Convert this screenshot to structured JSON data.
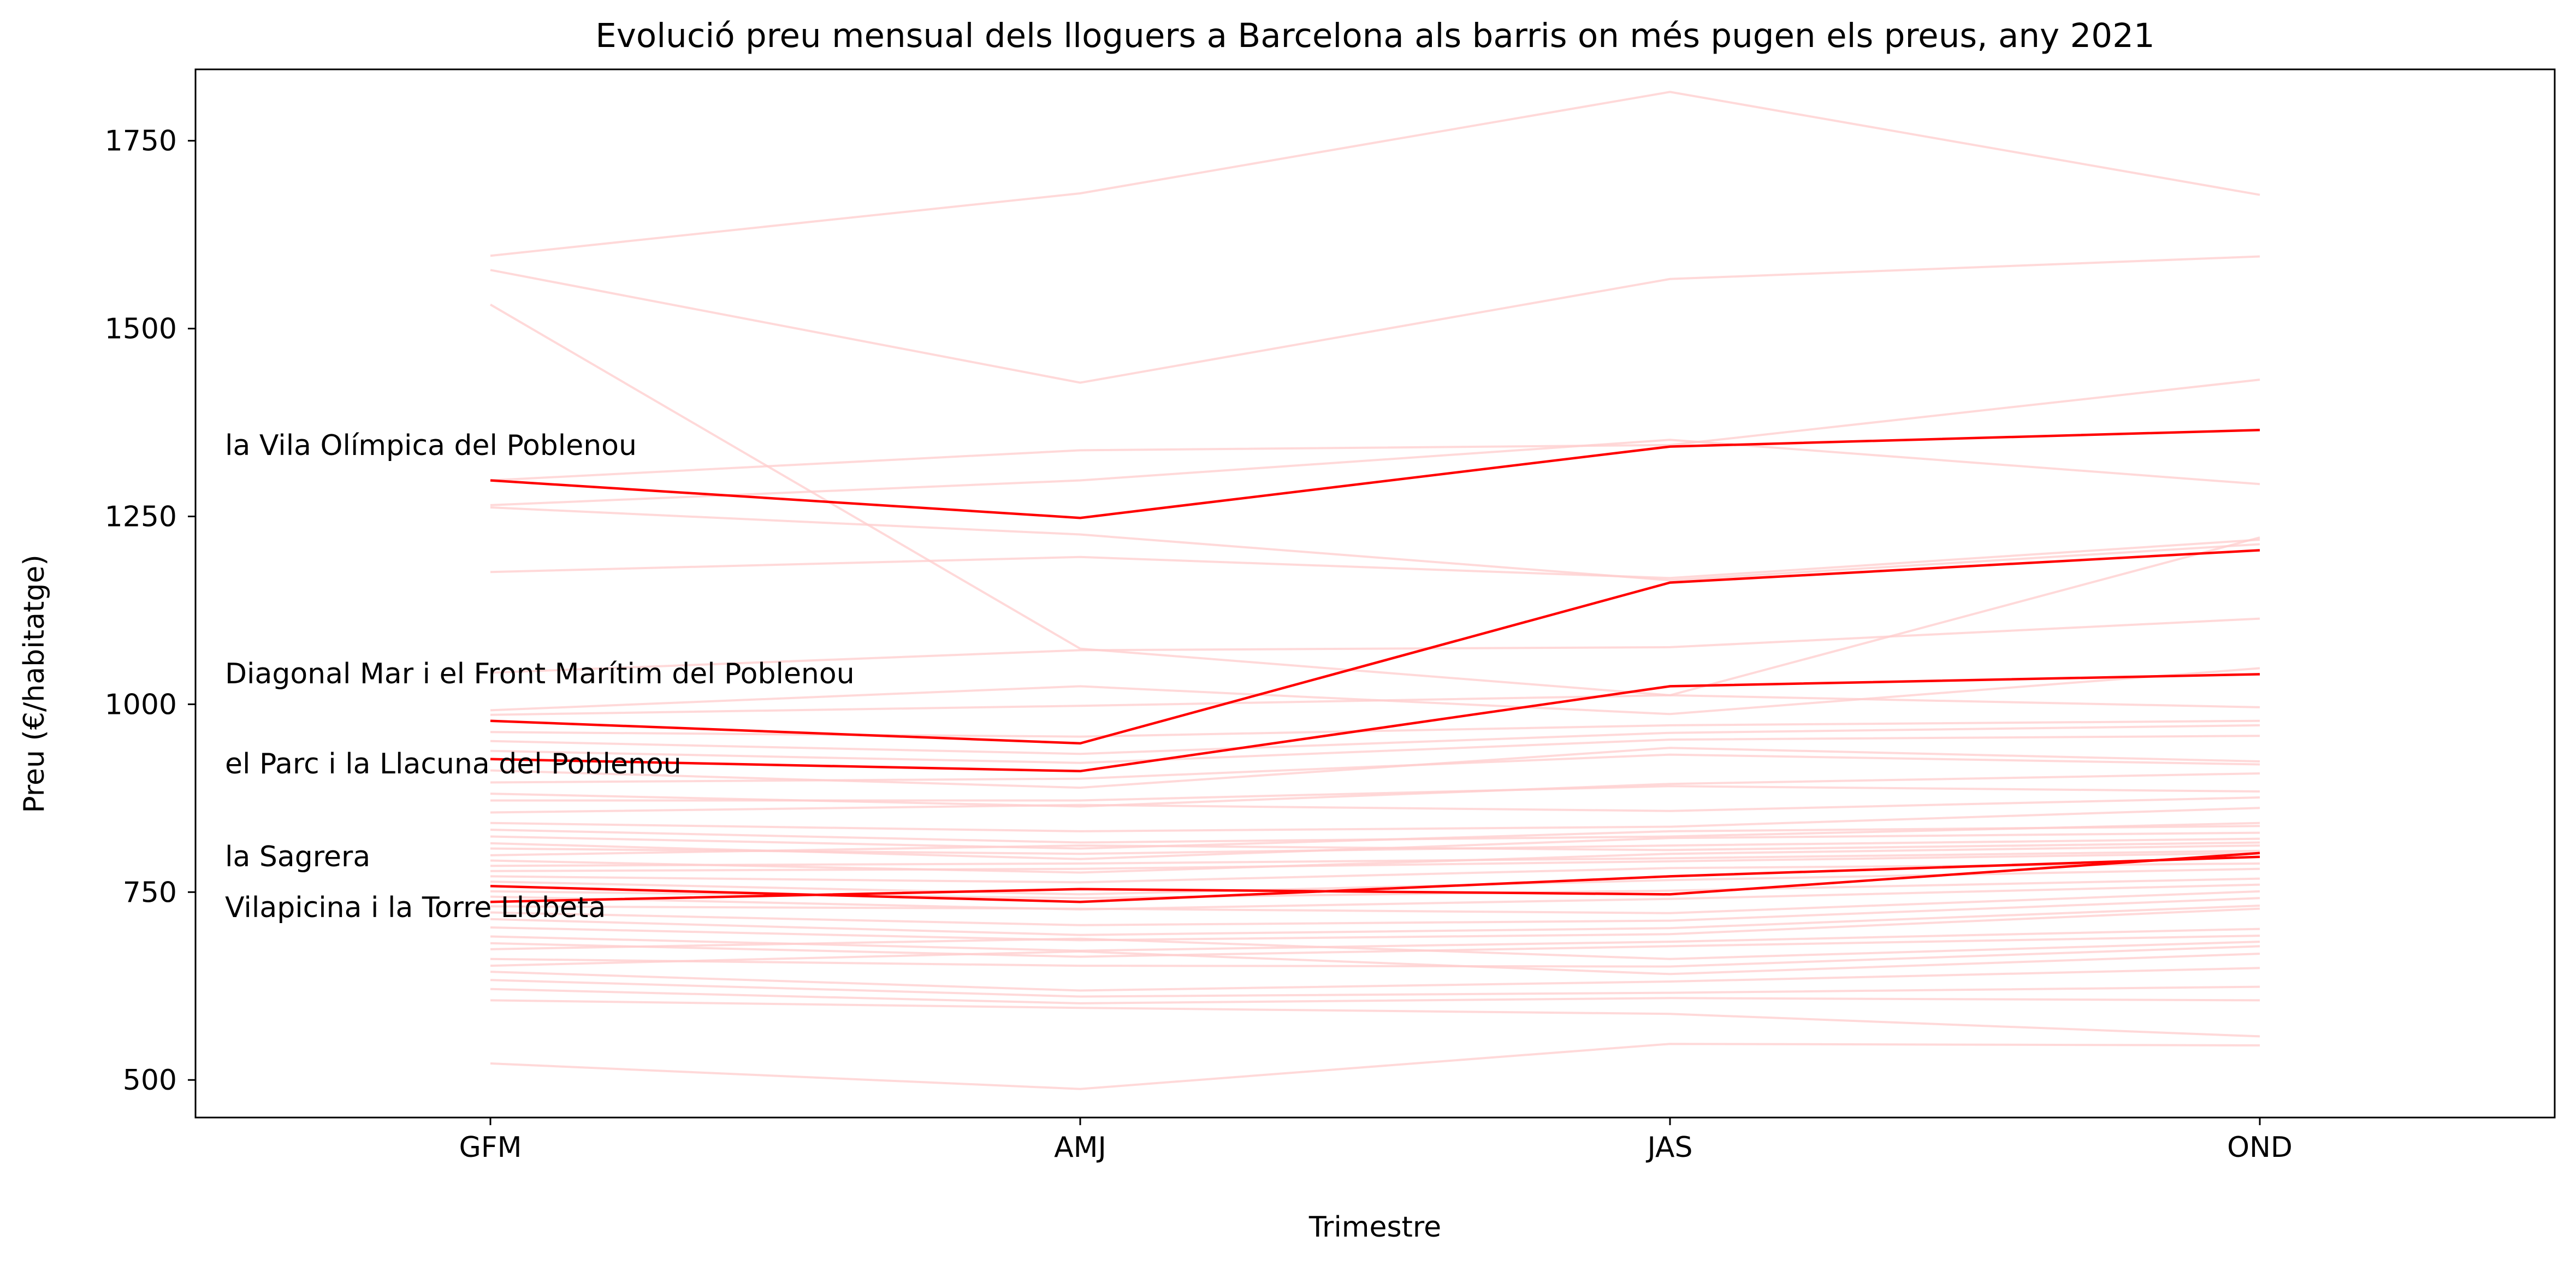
{
  "chart_data": {
    "type": "line",
    "title": "Evolució preu mensual dels lloguers a Barcelona als barris on més pugen els preus, any 2021",
    "xlabel": "Trimestre",
    "ylabel": "Preu (€/habitatge)",
    "categories": [
      "GFM",
      "AMJ",
      "JAS",
      "OND"
    ],
    "ylim": [
      450,
      1845
    ],
    "yticks": [
      "500",
      "750",
      "1000",
      "1250",
      "1500",
      "1750"
    ],
    "grid": false,
    "colors": {
      "highlight": "#ff0000",
      "background_series": "#ffcccc",
      "axis": "#000000"
    },
    "highlighted_series": [
      {
        "name": "la Vila Olímpica del Poblenou",
        "values": [
          1298,
          1248,
          1343,
          1365
        ]
      },
      {
        "name": "Diagonal Mar i el Front Marítim del Poblenou",
        "values": [
          978,
          948,
          1162,
          1205
        ]
      },
      {
        "name": "el Parc i la Llacuna del Poblenou",
        "values": [
          927,
          911,
          1024,
          1040
        ]
      },
      {
        "name": "la Sagrera",
        "values": [
          758,
          737,
          771,
          797
        ]
      },
      {
        "name": "Vilapicina i la Torre Llobeta",
        "values": [
          737,
          754,
          747,
          802
        ]
      }
    ],
    "background_series": [
      [
        1597,
        1680,
        1815,
        1678
      ],
      [
        1578,
        1428,
        1566,
        1596
      ],
      [
        1532,
        1074,
        1012,
        1222
      ],
      [
        1298,
        1338,
        1345,
        1432
      ],
      [
        1265,
        1298,
        1352,
        1293
      ],
      [
        1262,
        1226,
        1165,
        1213
      ],
      [
        1176,
        1196,
        1168,
        1219
      ],
      [
        1042,
        1072,
        1076,
        1114
      ],
      [
        992,
        1024,
        987,
        1048
      ],
      [
        986,
        998,
        1012,
        996
      ],
      [
        963,
        957,
        972,
        978
      ],
      [
        951,
        934,
        962,
        972
      ],
      [
        938,
        922,
        953,
        958
      ],
      [
        912,
        889,
        942,
        924
      ],
      [
        896,
        901,
        933,
        920
      ],
      [
        881,
        864,
        894,
        908
      ],
      [
        872,
        872,
        891,
        884
      ],
      [
        856,
        866,
        858,
        876
      ],
      [
        842,
        831,
        837,
        862
      ],
      [
        833,
        816,
        824,
        842
      ],
      [
        824,
        808,
        831,
        838
      ],
      [
        815,
        794,
        822,
        829
      ],
      [
        808,
        801,
        812,
        821
      ],
      [
        799,
        812,
        806,
        816
      ],
      [
        792,
        776,
        801,
        812
      ],
      [
        785,
        788,
        795,
        805
      ],
      [
        778,
        781,
        791,
        802
      ],
      [
        771,
        763,
        782,
        788
      ],
      [
        764,
        747,
        766,
        781
      ],
      [
        751,
        742,
        752,
        768
      ],
      [
        744,
        727,
        741,
        760
      ],
      [
        731,
        728,
        722,
        751
      ],
      [
        723,
        706,
        712,
        742
      ],
      [
        714,
        693,
        702,
        732
      ],
      [
        703,
        686,
        694,
        728
      ],
      [
        691,
        672,
        684,
        701
      ],
      [
        682,
        664,
        678,
        692
      ],
      [
        674,
        688,
        661,
        684
      ],
      [
        661,
        652,
        651,
        678
      ],
      [
        652,
        671,
        641,
        668
      ],
      [
        644,
        619,
        631,
        649
      ],
      [
        633,
        611,
        616,
        624
      ],
      [
        621,
        602,
        609,
        606
      ],
      [
        606,
        596,
        588,
        558
      ],
      [
        522,
        488,
        548,
        546
      ]
    ]
  }
}
